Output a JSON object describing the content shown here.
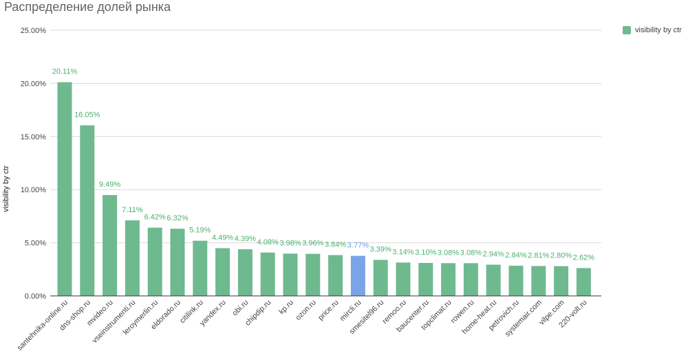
{
  "chart_data": {
    "type": "bar",
    "title": "Распределение долей рынка",
    "xlabel": "",
    "ylabel": "visibility by ctr",
    "ylim": [
      0,
      25
    ],
    "yticks": [
      "0.00%",
      "5.00%",
      "10.00%",
      "15.00%",
      "20.00%",
      "25.00%"
    ],
    "grid": true,
    "legend_position": "top-right",
    "series": [
      {
        "name": "visibility by ctr",
        "color": "#6fb98f",
        "values": [
          20.11,
          16.05,
          9.49,
          7.11,
          6.42,
          6.32,
          5.19,
          4.49,
          4.39,
          4.08,
          3.98,
          3.96,
          3.84,
          3.77,
          3.39,
          3.14,
          3.1,
          3.08,
          3.08,
          2.94,
          2.84,
          2.81,
          2.8,
          2.62
        ]
      }
    ],
    "categories": [
      "santehnika-online.ru",
      "dns-shop.ru",
      "mvideo.ru",
      "vseinstrumenti.ru",
      "leroymerlin.ru",
      "eldorado.ru",
      "citilink.ru",
      "yandex.ru",
      "obi.ru",
      "chipdip.ru",
      "kp.ru",
      "ozon.ru",
      "price.ru",
      "mircli.ru",
      "smesitel96.ru",
      "remoo.ru",
      "baucenter.ru",
      "topclimat.ru",
      "rowen.ru",
      "home-heat.ru",
      "petrovich.ru",
      "systemair.com",
      "vilpe.com",
      "220-volt.ru"
    ],
    "data_labels": [
      "20.11%",
      "16.05%",
      "9.49%",
      "7.11%",
      "6.42%",
      "6.32%",
      "5.19%",
      "4.49%",
      "4.39%",
      "4.08%",
      "3.98%",
      "3.96%",
      "3.84%",
      "3.77%",
      "3.39%",
      "3.14%",
      "3.10%",
      "3.08%",
      "3.08%",
      "2.94%",
      "2.84%",
      "2.81%",
      "2.80%",
      "2.62%"
    ],
    "highlight": {
      "category": "mircli.ru",
      "color": "#7ba4e8",
      "label_color": "#6d9ae6"
    },
    "label_color": "#4caf6e",
    "colors": {
      "gridline": "#d9d9d9",
      "axis": "#333333",
      "tick_text": "#444444"
    }
  }
}
